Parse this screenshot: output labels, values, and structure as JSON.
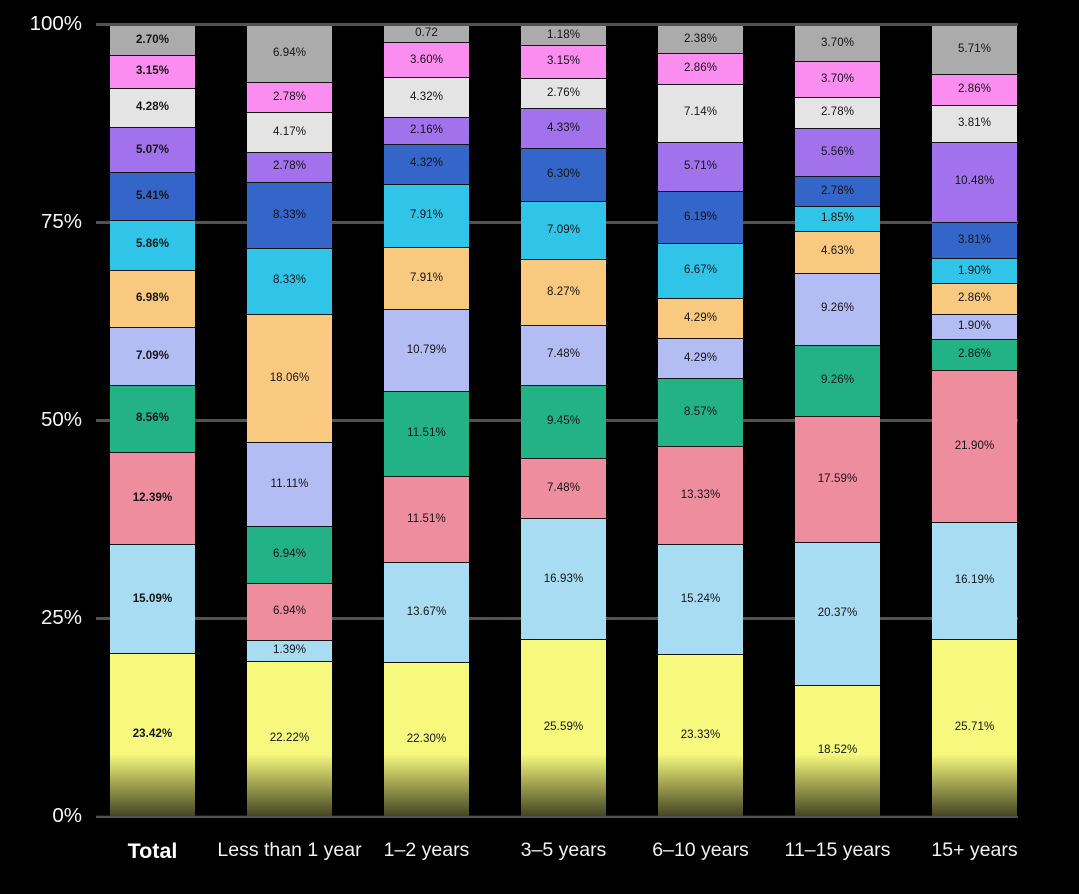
{
  "page": {
    "background": "#000000"
  },
  "colors": {
    "grid": "#525252",
    "axis_text": "#f6f6f6",
    "segment_text": "#141414",
    "background": "#000000"
  },
  "chart_data": {
    "type": "bar",
    "stacked": true,
    "orientation": "vertical",
    "value_unit": "percent",
    "ylim": [
      0,
      100
    ],
    "y_ticks": [
      "100%",
      "75%",
      "50%",
      "25%",
      "0%"
    ],
    "grid": true,
    "legend": false,
    "bottom_fade_effect": true,
    "categories": [
      "Total",
      "Less than 1 year",
      "1–2 years",
      "3–5 years",
      "6–10 years",
      "11–15 years",
      "15+ years"
    ],
    "series_order_note": "series listed top-to-bottom as stacked in each bar",
    "series": [
      {
        "name": "gray",
        "color": "#ababab",
        "values": [
          2.7,
          6.94,
          0.72,
          1.18,
          2.38,
          3.7,
          5.71
        ],
        "labels": [
          "2.70%",
          "6.94%",
          "0.72",
          "1.18%",
          "2.38%",
          "3.70%",
          "5.71%"
        ]
      },
      {
        "name": "magenta",
        "color": "#fb8df1",
        "values": [
          3.15,
          2.78,
          3.6,
          3.15,
          2.86,
          3.7,
          2.86
        ],
        "labels": [
          "3.15%",
          "2.78%",
          "3.60%",
          "3.15%",
          "2.86%",
          "3.70%",
          "2.86%"
        ]
      },
      {
        "name": "light-gray",
        "color": "#e4e4e4",
        "values": [
          4.28,
          4.17,
          4.32,
          2.76,
          7.14,
          2.78,
          3.81
        ],
        "labels": [
          "4.28%",
          "4.17%",
          "4.32%",
          "2.76%",
          "7.14%",
          "2.78%",
          "3.81%"
        ]
      },
      {
        "name": "purple",
        "color": "#a272ec",
        "values": [
          5.07,
          2.78,
          2.16,
          4.33,
          5.71,
          5.56,
          10.48
        ],
        "labels": [
          "5.07%",
          "2.78%",
          "2.16%",
          "4.33%",
          "5.71%",
          "5.56%",
          "10.48%"
        ]
      },
      {
        "name": "blue",
        "color": "#3465c8",
        "values": [
          5.41,
          8.33,
          4.32,
          6.3,
          6.19,
          2.78,
          3.81
        ],
        "labels": [
          "5.41%",
          "8.33%",
          "4.32%",
          "6.30%",
          "6.19%",
          "2.78%",
          "3.81%"
        ]
      },
      {
        "name": "cyan",
        "color": "#30c5e8",
        "values": [
          5.86,
          8.33,
          7.91,
          7.09,
          6.67,
          1.85,
          1.9
        ],
        "labels": [
          "5.86%",
          "8.33%",
          "7.91%",
          "7.09%",
          "6.67%",
          "1.85%",
          "1.90%"
        ]
      },
      {
        "name": "orange",
        "color": "#f8c97e",
        "values": [
          6.98,
          18.06,
          7.91,
          8.27,
          4.29,
          4.63,
          2.86
        ],
        "labels": [
          "6.98%",
          "18.06%",
          "7.91%",
          "8.27%",
          "4.29%",
          "4.63%",
          "2.86%"
        ]
      },
      {
        "name": "periwinkle",
        "color": "#b4bdf3",
        "values": [
          7.09,
          11.11,
          10.79,
          7.48,
          4.29,
          9.26,
          1.9
        ],
        "labels": [
          "7.09%",
          "11.11%",
          "10.79%",
          "7.48%",
          "4.29%",
          "9.26%",
          "1.90%"
        ]
      },
      {
        "name": "green",
        "color": "#23b286",
        "values": [
          8.56,
          6.94,
          11.51,
          9.45,
          8.57,
          9.26,
          2.86
        ],
        "labels": [
          "8.56%",
          "6.94%",
          "11.51%",
          "9.45%",
          "8.57%",
          "9.26%",
          "2.86%"
        ]
      },
      {
        "name": "salmon",
        "color": "#ee8d9d",
        "values": [
          12.39,
          6.94,
          11.51,
          7.48,
          13.33,
          17.59,
          21.9
        ],
        "labels": [
          "12.39%",
          "6.94%",
          "11.51%",
          "7.48%",
          "13.33%",
          "17.59%",
          "21.90%"
        ]
      },
      {
        "name": "light-blue",
        "color": "#a8dcf2",
        "values": [
          15.09,
          1.39,
          13.67,
          16.93,
          15.24,
          20.37,
          16.19
        ],
        "labels": [
          "15.09%",
          "1.39%",
          "13.67%",
          "16.93%",
          "15.24%",
          "20.37%",
          "16.19%"
        ]
      },
      {
        "name": "yellow",
        "color": "#f6f97d",
        "values": [
          23.42,
          22.22,
          22.3,
          25.59,
          23.33,
          18.52,
          25.71
        ],
        "labels": [
          "23.42%",
          "22.22%",
          "22.30%",
          "25.59%",
          "23.33%",
          "18.52%",
          "25.71%"
        ]
      }
    ]
  }
}
